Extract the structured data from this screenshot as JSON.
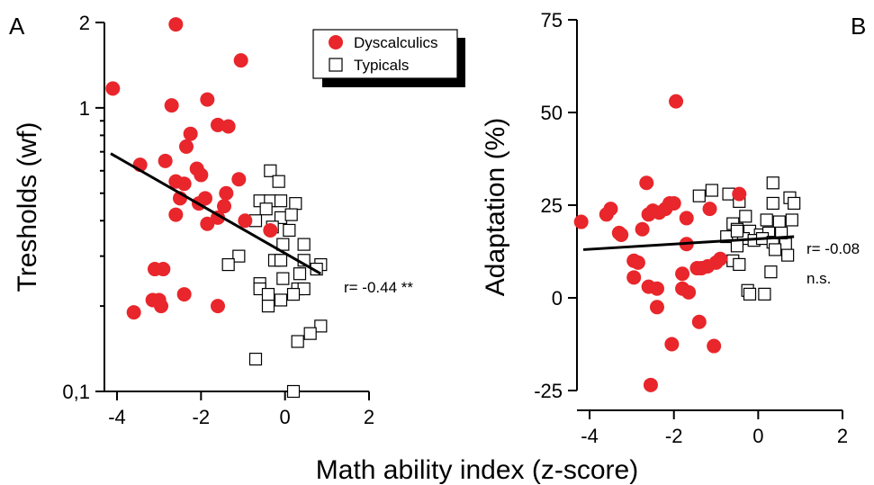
{
  "colors": {
    "dyscalculics": "#e8262b",
    "typicals_fill": "#ffffff",
    "typicals_stroke": "#000000",
    "fit_line": "#000000"
  },
  "shared_xlabel": "Math ability index (z-score)",
  "chart_data": [
    {
      "type": "scatter",
      "panel": "A",
      "xlabel": "",
      "ylabel": "Tresholds (wf)",
      "yscale": "log",
      "xlim": [
        -4.3,
        2
      ],
      "ylim": [
        0.1,
        2
      ],
      "x_ticks": [
        -4,
        -2,
        0,
        2
      ],
      "x_tick_labels": [
        "-4",
        "-2",
        "0",
        "2"
      ],
      "y_ticks": [
        0.1,
        1,
        2
      ],
      "y_tick_labels": [
        "0,1",
        "1",
        "2"
      ],
      "legend": {
        "placement": "top-right",
        "entries": [
          "Dyscalculics",
          "Typicals"
        ]
      },
      "annotation": "r= -0.44 **",
      "fit_line": {
        "x": [
          -4.15,
          0.85
        ],
        "y": [
          0.69,
          0.26
        ]
      },
      "series": [
        {
          "name": "Dyscalculics",
          "marker": "filled-circle",
          "points": [
            [
              -4.1,
              1.17
            ],
            [
              -2.6,
              1.97
            ],
            [
              -1.05,
              1.47
            ],
            [
              -2.7,
              1.02
            ],
            [
              -1.85,
              1.07
            ],
            [
              -2.25,
              0.81
            ],
            [
              -1.6,
              0.87
            ],
            [
              -1.35,
              0.86
            ],
            [
              -2.35,
              0.73
            ],
            [
              -2.85,
              0.65
            ],
            [
              -3.45,
              0.63
            ],
            [
              -2.1,
              0.61
            ],
            [
              -2.0,
              0.58
            ],
            [
              -1.1,
              0.56
            ],
            [
              -2.6,
              0.55
            ],
            [
              -2.4,
              0.54
            ],
            [
              -1.4,
              0.5
            ],
            [
              -2.5,
              0.48
            ],
            [
              -1.9,
              0.48
            ],
            [
              -2.05,
              0.46
            ],
            [
              -1.45,
              0.45
            ],
            [
              -2.6,
              0.42
            ],
            [
              -1.6,
              0.41
            ],
            [
              -0.95,
              0.4
            ],
            [
              -1.85,
              0.39
            ],
            [
              -0.35,
              0.37
            ],
            [
              -3.1,
              0.27
            ],
            [
              -2.9,
              0.27
            ],
            [
              -2.4,
              0.22
            ],
            [
              -3.0,
              0.21
            ],
            [
              -3.15,
              0.21
            ],
            [
              -2.95,
              0.2
            ],
            [
              -1.6,
              0.2
            ],
            [
              -3.6,
              0.19
            ]
          ]
        },
        {
          "name": "Typicals",
          "marker": "open-square",
          "points": [
            [
              -0.35,
              0.6
            ],
            [
              -0.15,
              0.55
            ],
            [
              -0.6,
              0.47
            ],
            [
              -0.35,
              0.47
            ],
            [
              -0.1,
              0.47
            ],
            [
              0.25,
              0.46
            ],
            [
              -0.45,
              0.44
            ],
            [
              -0.1,
              0.41
            ],
            [
              0.15,
              0.42
            ],
            [
              -0.7,
              0.4
            ],
            [
              -0.3,
              0.38
            ],
            [
              0.1,
              0.37
            ],
            [
              -0.05,
              0.33
            ],
            [
              0.45,
              0.33
            ],
            [
              -1.1,
              0.3
            ],
            [
              -0.25,
              0.29
            ],
            [
              -0.1,
              0.29
            ],
            [
              0.45,
              0.29
            ],
            [
              -1.35,
              0.28
            ],
            [
              0.85,
              0.28
            ],
            [
              0.75,
              0.27
            ],
            [
              0.35,
              0.26
            ],
            [
              -0.05,
              0.25
            ],
            [
              -0.6,
              0.24
            ],
            [
              -0.6,
              0.23
            ],
            [
              0.3,
              0.23
            ],
            [
              0.45,
              0.23
            ],
            [
              -0.4,
              0.22
            ],
            [
              0.2,
              0.22
            ],
            [
              -0.1,
              0.21
            ],
            [
              -0.4,
              0.2
            ],
            [
              0.85,
              0.17
            ],
            [
              0.6,
              0.16
            ],
            [
              0.3,
              0.15
            ],
            [
              -0.7,
              0.13
            ],
            [
              0.2,
              0.1
            ]
          ]
        }
      ]
    },
    {
      "type": "scatter",
      "panel": "B",
      "xlabel": "",
      "ylabel": "Adaptation (%)",
      "yscale": "linear",
      "xlim": [
        -4.3,
        2
      ],
      "ylim": [
        -25,
        75
      ],
      "x_ticks": [
        -4,
        -2,
        0,
        2
      ],
      "x_tick_labels": [
        "-4",
        "-2",
        "0",
        "2"
      ],
      "y_ticks": [
        -25,
        0,
        25,
        50,
        75
      ],
      "y_tick_labels": [
        "-25",
        "0",
        "25",
        "50",
        "75"
      ],
      "annotation": "r= -0.08",
      "annotation2": "n.s.",
      "fit_line": {
        "x": [
          -4.15,
          0.85
        ],
        "y": [
          13,
          16.5
        ]
      },
      "series": [
        {
          "name": "Dyscalculics",
          "marker": "filled-circle",
          "points": [
            [
              -4.2,
              20.5
            ],
            [
              -3.6,
              22.5
            ],
            [
              -3.5,
              24
            ],
            [
              -3.3,
              17.5
            ],
            [
              -3.25,
              17
            ],
            [
              -2.95,
              10
            ],
            [
              -2.85,
              9.5
            ],
            [
              -2.95,
              5.5
            ],
            [
              -2.75,
              18.5
            ],
            [
              -2.65,
              31
            ],
            [
              -2.6,
              22.5
            ],
            [
              -2.5,
              23.5
            ],
            [
              -2.35,
              23
            ],
            [
              -2.2,
              24
            ],
            [
              -2.1,
              25.5
            ],
            [
              -2.0,
              25.5
            ],
            [
              -1.95,
              53
            ],
            [
              -1.8,
              2.5
            ],
            [
              -1.8,
              6.5
            ],
            [
              -1.7,
              21.5
            ],
            [
              -1.7,
              14.5
            ],
            [
              -1.65,
              1.5
            ],
            [
              -1.45,
              8
            ],
            [
              -1.35,
              8
            ],
            [
              -1.2,
              8.5
            ],
            [
              -1.15,
              24
            ],
            [
              -1.0,
              9.5
            ],
            [
              -0.9,
              10.5
            ],
            [
              -0.45,
              28
            ],
            [
              -2.6,
              3
            ],
            [
              -2.4,
              2.5
            ],
            [
              -2.4,
              -2.5
            ],
            [
              -1.4,
              -6.5
            ],
            [
              -2.05,
              -12.5
            ],
            [
              -1.05,
              -13
            ],
            [
              -2.55,
              -23.5
            ]
          ]
        },
        {
          "name": "Typicals",
          "marker": "open-square",
          "points": [
            [
              -1.4,
              27.5
            ],
            [
              -1.1,
              29
            ],
            [
              -0.7,
              28
            ],
            [
              -0.45,
              26
            ],
            [
              0.35,
              31
            ],
            [
              0.75,
              27
            ],
            [
              0.85,
              25.5
            ],
            [
              -0.3,
              22
            ],
            [
              -0.6,
              20
            ],
            [
              0.2,
              21
            ],
            [
              0.35,
              25.5
            ],
            [
              0.5,
              20.5
            ],
            [
              0.8,
              21
            ],
            [
              -0.5,
              18.5
            ],
            [
              -0.2,
              18
            ],
            [
              0.05,
              17
            ],
            [
              0.25,
              17.5
            ],
            [
              -0.75,
              16.5
            ],
            [
              -0.35,
              16
            ],
            [
              -0.1,
              15.5
            ],
            [
              0.1,
              16
            ],
            [
              0.35,
              15
            ],
            [
              -0.5,
              14
            ],
            [
              0.65,
              14.5
            ],
            [
              0.4,
              13
            ],
            [
              0.7,
              11.5
            ],
            [
              -0.6,
              10
            ],
            [
              -0.45,
              9
            ],
            [
              0.3,
              7
            ],
            [
              -0.25,
              2
            ],
            [
              -0.2,
              1
            ],
            [
              0.15,
              1
            ],
            [
              -0.5,
              18
            ],
            [
              0.55,
              17.5
            ]
          ]
        }
      ]
    }
  ]
}
